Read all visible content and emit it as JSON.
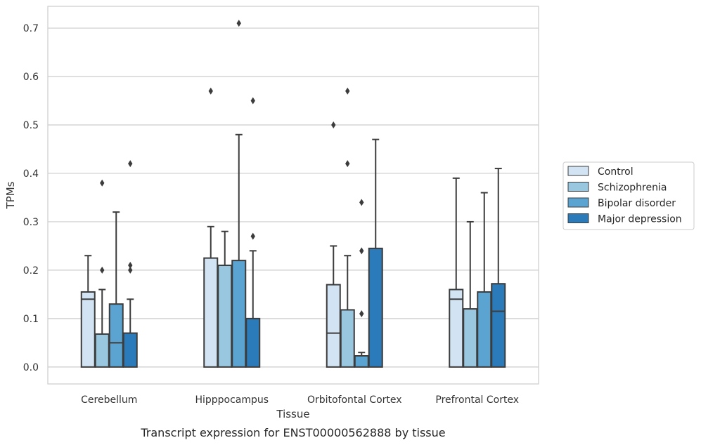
{
  "chart_data": {
    "type": "box",
    "xlabel": "Tissue",
    "ylabel": "TPMs",
    "caption": "Transcript expression for ENST00000562888 by tissue",
    "categories": [
      "Cerebellum",
      "Hipppocampus",
      "Orbitofontal Cortex",
      "Prefrontal Cortex"
    ],
    "ylim": [
      -0.035,
      0.745
    ],
    "yticks": [
      0.0,
      0.1,
      0.2,
      0.3,
      0.4,
      0.5,
      0.6,
      0.7
    ],
    "ytick_labels": [
      "0.0",
      "0.1",
      "0.2",
      "0.3",
      "0.4",
      "0.5",
      "0.6",
      "0.7"
    ],
    "grid": "horizontal",
    "legend_position": "right",
    "series": [
      {
        "name": "Control",
        "color": "#d2e3f3",
        "boxes": [
          {
            "q1": 0.0,
            "median": 0.14,
            "q3": 0.155,
            "whisker_low": 0.0,
            "whisker_high": 0.23,
            "outliers": []
          },
          {
            "q1": 0.0,
            "median": 0.225,
            "q3": 0.225,
            "whisker_low": 0.0,
            "whisker_high": 0.29,
            "outliers": [
              0.57
            ]
          },
          {
            "q1": 0.0,
            "median": 0.07,
            "q3": 0.17,
            "whisker_low": 0.0,
            "whisker_high": 0.25,
            "outliers": [
              0.5
            ]
          },
          {
            "q1": 0.0,
            "median": 0.14,
            "q3": 0.16,
            "whisker_low": 0.0,
            "whisker_high": 0.39,
            "outliers": []
          }
        ]
      },
      {
        "name": "Schizophrenia",
        "color": "#9ac7e0",
        "boxes": [
          {
            "q1": 0.0,
            "median": 0.068,
            "q3": 0.068,
            "whisker_low": 0.0,
            "whisker_high": 0.16,
            "outliers": [
              0.38,
              0.2
            ]
          },
          {
            "q1": 0.0,
            "median": 0.21,
            "q3": 0.21,
            "whisker_low": 0.0,
            "whisker_high": 0.28,
            "outliers": []
          },
          {
            "q1": 0.0,
            "median": 0.118,
            "q3": 0.118,
            "whisker_low": 0.0,
            "whisker_high": 0.23,
            "outliers": [
              0.57,
              0.42
            ]
          },
          {
            "q1": 0.0,
            "median": 0.12,
            "q3": 0.12,
            "whisker_low": 0.0,
            "whisker_high": 0.3,
            "outliers": []
          }
        ]
      },
      {
        "name": "Bipolar disorder",
        "color": "#5ba3d0",
        "boxes": [
          {
            "q1": 0.0,
            "median": 0.05,
            "q3": 0.13,
            "whisker_low": 0.0,
            "whisker_high": 0.32,
            "outliers": []
          },
          {
            "q1": 0.0,
            "median": 0.22,
            "q3": 0.22,
            "whisker_low": 0.0,
            "whisker_high": 0.48,
            "outliers": [
              0.71
            ]
          },
          {
            "q1": 0.0,
            "median": 0.023,
            "q3": 0.023,
            "whisker_low": 0.0,
            "whisker_high": 0.03,
            "outliers": [
              0.34,
              0.24,
              0.11
            ]
          },
          {
            "q1": 0.0,
            "median": 0.155,
            "q3": 0.155,
            "whisker_low": 0.0,
            "whisker_high": 0.36,
            "outliers": []
          }
        ]
      },
      {
        "name": "Major depression",
        "color": "#2b7bba",
        "boxes": [
          {
            "q1": 0.0,
            "median": 0.07,
            "q3": 0.07,
            "whisker_low": 0.0,
            "whisker_high": 0.14,
            "outliers": [
              0.42,
              0.21,
              0.2
            ]
          },
          {
            "q1": 0.0,
            "median": 0.1,
            "q3": 0.1,
            "whisker_low": 0.0,
            "whisker_high": 0.24,
            "outliers": [
              0.55,
              0.27
            ]
          },
          {
            "q1": 0.0,
            "median": 0.245,
            "q3": 0.245,
            "whisker_low": 0.0,
            "whisker_high": 0.47,
            "outliers": []
          },
          {
            "q1": 0.0,
            "median": 0.115,
            "q3": 0.172,
            "whisker_low": 0.0,
            "whisker_high": 0.41,
            "outliers": []
          }
        ]
      }
    ]
  }
}
